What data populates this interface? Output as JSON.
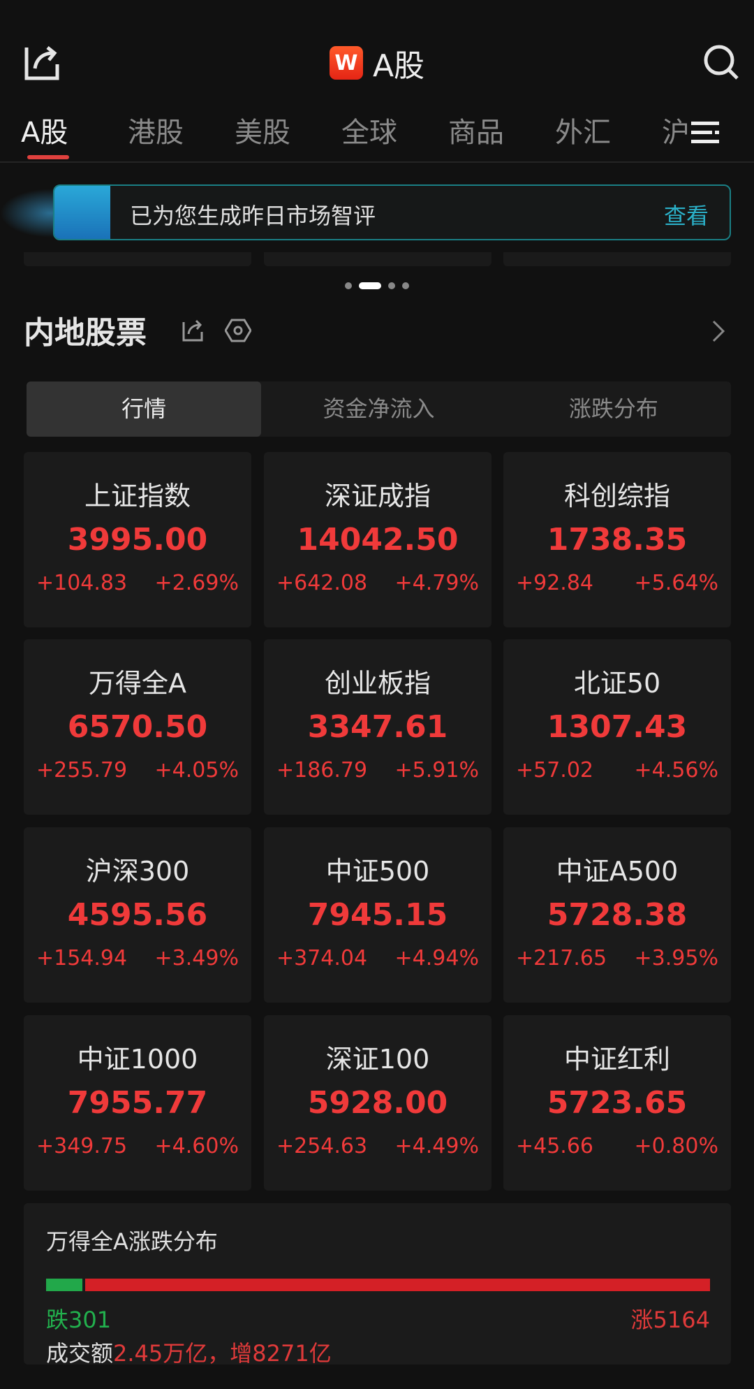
{
  "header": {
    "title": "A股",
    "logo_letter": "W",
    "share_icon": "share-icon",
    "search_icon": "search-icon"
  },
  "tabs": [
    {
      "label": "A股",
      "active": true
    },
    {
      "label": "港股"
    },
    {
      "label": "美股"
    },
    {
      "label": "全球"
    },
    {
      "label": "商品"
    },
    {
      "label": "外汇"
    },
    {
      "label": "沪"
    }
  ],
  "tabs_menu_icon": "menu-icon",
  "banner": {
    "text": "已为您生成昨日市场智评",
    "link": "查看"
  },
  "carousel": {
    "pages": 4,
    "active": 1
  },
  "section": {
    "title": "内地股票"
  },
  "segments": [
    {
      "label": "行情",
      "active": true
    },
    {
      "label": "资金净流入"
    },
    {
      "label": "涨跌分布"
    }
  ],
  "indices": [
    {
      "name": "上证指数",
      "price": "3995.00",
      "change": "+104.83",
      "pct": "+2.69%"
    },
    {
      "name": "深证成指",
      "price": "14042.50",
      "change": "+642.08",
      "pct": "+4.79%"
    },
    {
      "name": "科创综指",
      "price": "1738.35",
      "change": "+92.84",
      "pct": "+5.64%"
    },
    {
      "name": "万得全A",
      "price": "6570.50",
      "change": "+255.79",
      "pct": "+4.05%"
    },
    {
      "name": "创业板指",
      "price": "3347.61",
      "change": "+186.79",
      "pct": "+5.91%"
    },
    {
      "name": "北证50",
      "price": "1307.43",
      "change": "+57.02",
      "pct": "+4.56%"
    },
    {
      "name": "沪深300",
      "price": "4595.56",
      "change": "+154.94",
      "pct": "+3.49%"
    },
    {
      "name": "中证500",
      "price": "7945.15",
      "change": "+374.04",
      "pct": "+4.94%"
    },
    {
      "name": "中证A500",
      "price": "5728.38",
      "change": "+217.65",
      "pct": "+3.95%"
    },
    {
      "name": "中证1000",
      "price": "7955.77",
      "change": "+349.75",
      "pct": "+4.60%"
    },
    {
      "name": "深证100",
      "price": "5928.00",
      "change": "+254.63",
      "pct": "+4.49%"
    },
    {
      "name": "中证红利",
      "price": "5723.65",
      "change": "+45.66",
      "pct": "+0.80%"
    }
  ],
  "distribution": {
    "title": "万得全A涨跌分布",
    "down_label": "跌301",
    "up_label": "涨5164",
    "down": 301,
    "up": 5164,
    "turnover_label": "成交额",
    "turnover_value": "2.45万亿，增8271亿"
  },
  "colors": {
    "up": "#f03a3a",
    "down": "#22b04d",
    "accent": "#e0413e",
    "link": "#2bb0c8"
  }
}
